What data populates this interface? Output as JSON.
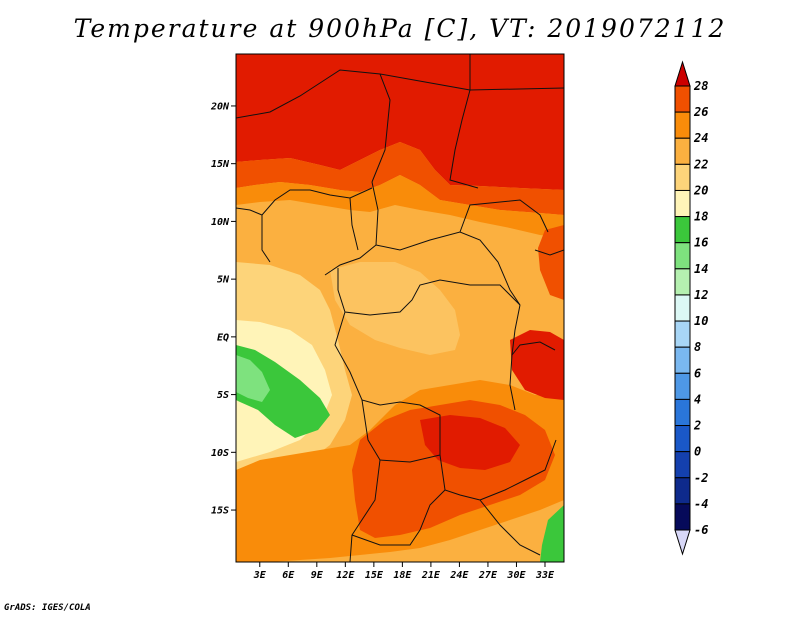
{
  "title": "Temperature at 900hPa [C], VT: 2019072112",
  "footer": "GrADS: IGES/COLA",
  "map": {
    "lat_labels": [
      {
        "text": "20N",
        "lat": 20
      },
      {
        "text": "15N",
        "lat": 15
      },
      {
        "text": "10N",
        "lat": 10
      },
      {
        "text": "5N",
        "lat": 5
      },
      {
        "text": "EQ",
        "lat": 0
      },
      {
        "text": "5S",
        "lat": -5
      },
      {
        "text": "10S",
        "lat": -10
      },
      {
        "text": "15S",
        "lat": -15
      }
    ],
    "lon_labels": [
      {
        "text": "3E",
        "lon": 3
      },
      {
        "text": "6E",
        "lon": 6
      },
      {
        "text": "9E",
        "lon": 9
      },
      {
        "text": "12E",
        "lon": 12
      },
      {
        "text": "15E",
        "lon": 15
      },
      {
        "text": "18E",
        "lon": 18
      },
      {
        "text": "21E",
        "lon": 21
      },
      {
        "text": "24E",
        "lon": 24
      },
      {
        "text": "27E",
        "lon": 27
      },
      {
        "text": "30E",
        "lon": 30
      },
      {
        "text": "33E",
        "lon": 33
      }
    ],
    "lon_range": [
      0.5,
      35
    ],
    "lat_range": [
      -19.5,
      24.5
    ]
  },
  "colorbar": {
    "labels": [
      "28",
      "26",
      "24",
      "22",
      "20",
      "18",
      "16",
      "14",
      "12",
      "10",
      "8",
      "6",
      "4",
      "2",
      "0",
      "-2",
      "-4",
      "-6"
    ],
    "colors": [
      "#e11b00",
      "#f05000",
      "#f98c0a",
      "#fbb040",
      "#fdd47a",
      "#fff4b8",
      "#3bc73b",
      "#7ee27e",
      "#b5f0b0",
      "#dcf8f5",
      "#a8d6f6",
      "#7ab8f0",
      "#4e98e6",
      "#2a76da",
      "#1a58c8",
      "#1440ae",
      "#0e2a8c",
      "#060a5a"
    ],
    "top_arrow_color": "#cc0000",
    "bottom_arrow_color": "#d8d8f8"
  }
}
